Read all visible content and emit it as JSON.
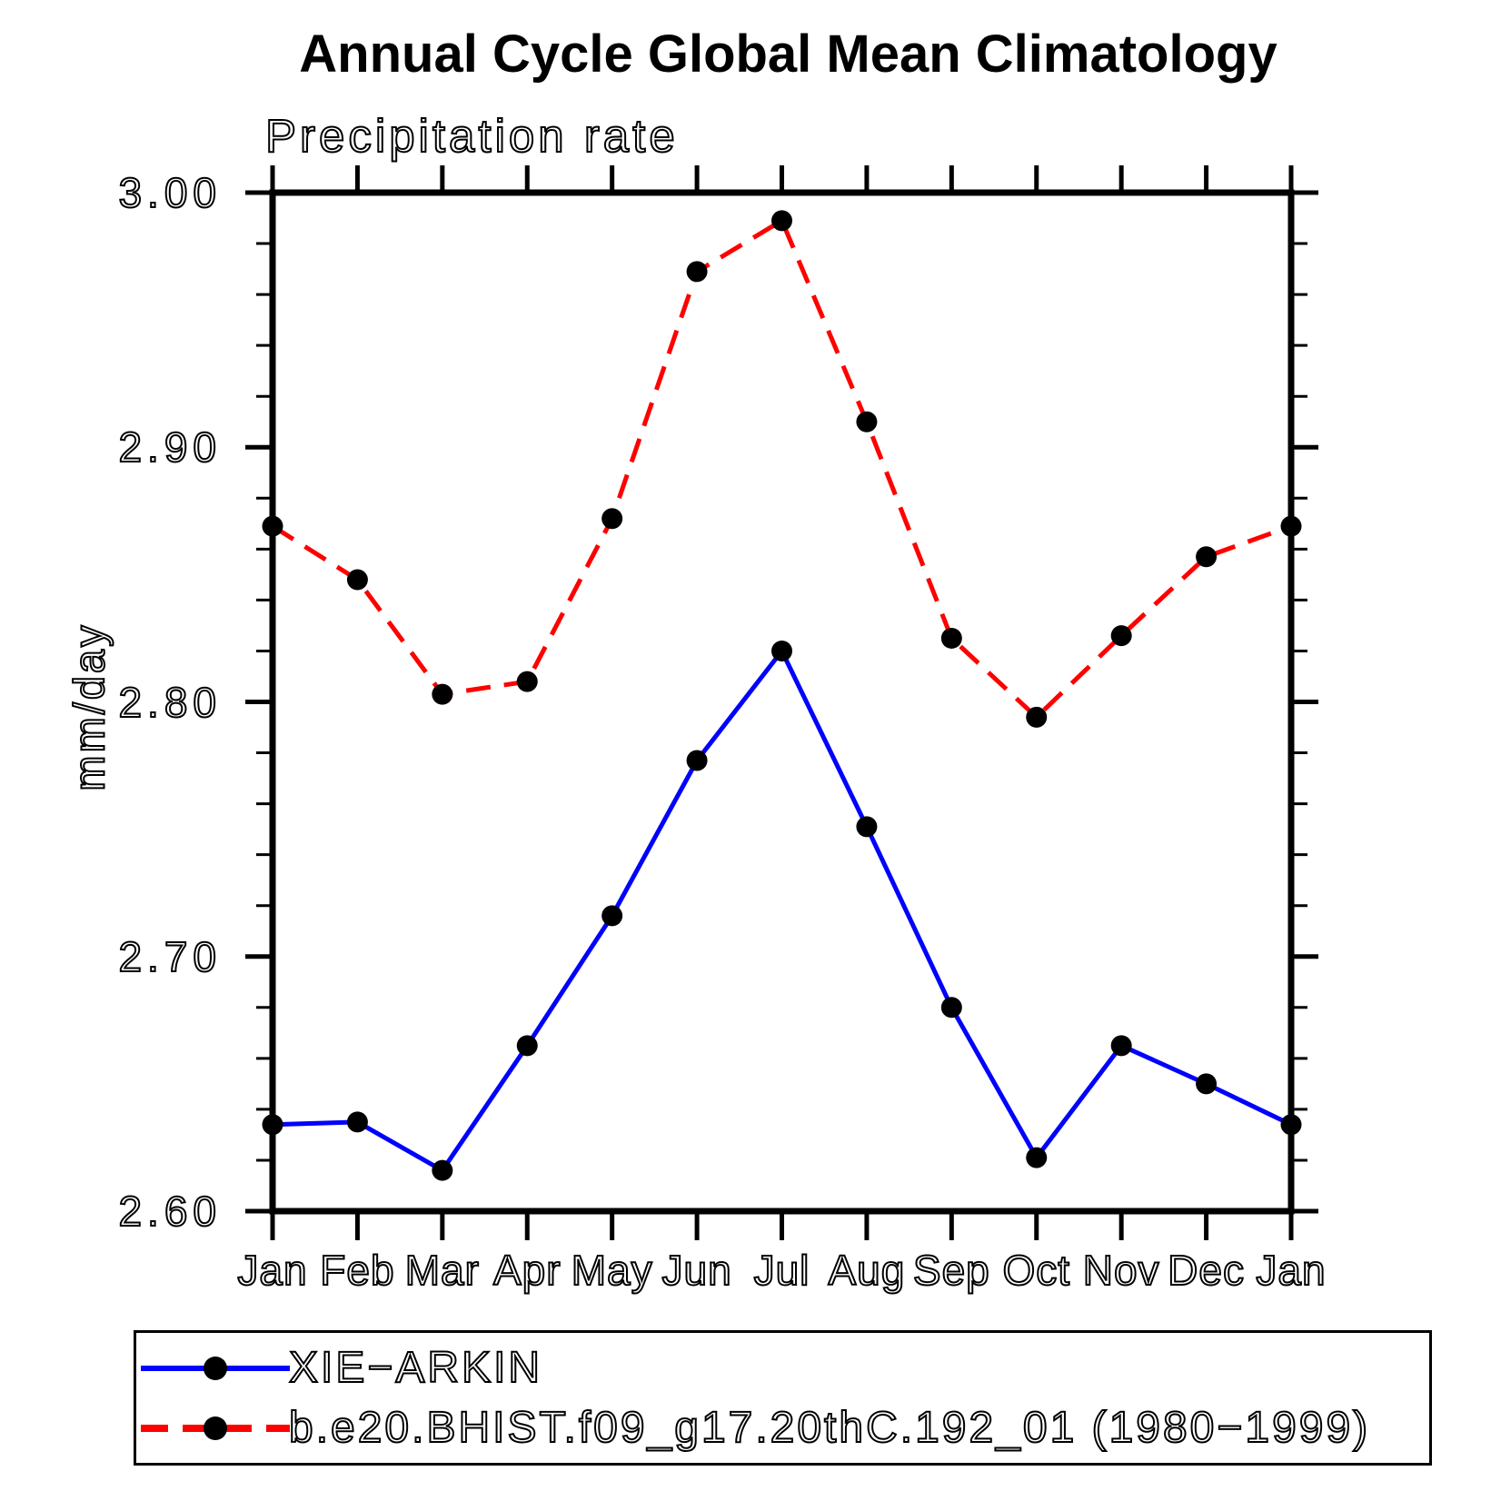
{
  "page": {
    "background": "#ffffff",
    "axis_color": "#000000"
  },
  "chart": {
    "title": "Annual Cycle Global Mean Climatology",
    "subtitle": "Precipitation rate",
    "ylabel": "mm/day"
  },
  "legend": {
    "items": [
      {
        "label": "XIE−ARKIN",
        "color": "#0000ff",
        "line_style": "solid",
        "marker_color": "#000000"
      },
      {
        "label": "b.e20.BHIST.f09_g17.20thC.192_01 (1980−1999)",
        "color": "#ff0000",
        "line_style": "dashed",
        "marker_color": "#000000"
      }
    ]
  },
  "chart_data": {
    "type": "line",
    "title": "Annual Cycle Global Mean Climatology",
    "subtitle": "Precipitation rate",
    "xlabel": "",
    "ylabel": "mm/day",
    "categories": [
      "Jan",
      "Feb",
      "Mar",
      "Apr",
      "May",
      "Jun",
      "Jul",
      "Aug",
      "Sep",
      "Oct",
      "Nov",
      "Dec",
      "Jan"
    ],
    "series": [
      {
        "name": "XIE−ARKIN",
        "color": "#0000ff",
        "line_style": "solid",
        "marker": "circle",
        "marker_color": "#000000",
        "values": [
          2.634,
          2.635,
          2.616,
          2.665,
          2.716,
          2.777,
          2.82,
          2.751,
          2.68,
          2.621,
          2.665,
          2.65,
          2.634
        ]
      },
      {
        "name": "b.e20.BHIST.f09_g17.20thC.192_01 (1980−1999)",
        "color": "#ff0000",
        "line_style": "dashed",
        "marker": "circle",
        "marker_color": "#000000",
        "values": [
          2.869,
          2.848,
          2.803,
          2.808,
          2.872,
          2.969,
          2.989,
          2.91,
          2.825,
          2.794,
          2.826,
          2.857,
          2.869
        ]
      }
    ],
    "ylim": [
      2.6,
      3.0
    ],
    "y_major_ticks": [
      3.0,
      2.9,
      2.8,
      2.7,
      2.6
    ],
    "y_tick_labels": [
      "3.00",
      "2.90",
      "2.80",
      "2.70",
      "2.60"
    ],
    "y_minor_step": 0.02,
    "grid": false,
    "legend_position": "bottom"
  }
}
